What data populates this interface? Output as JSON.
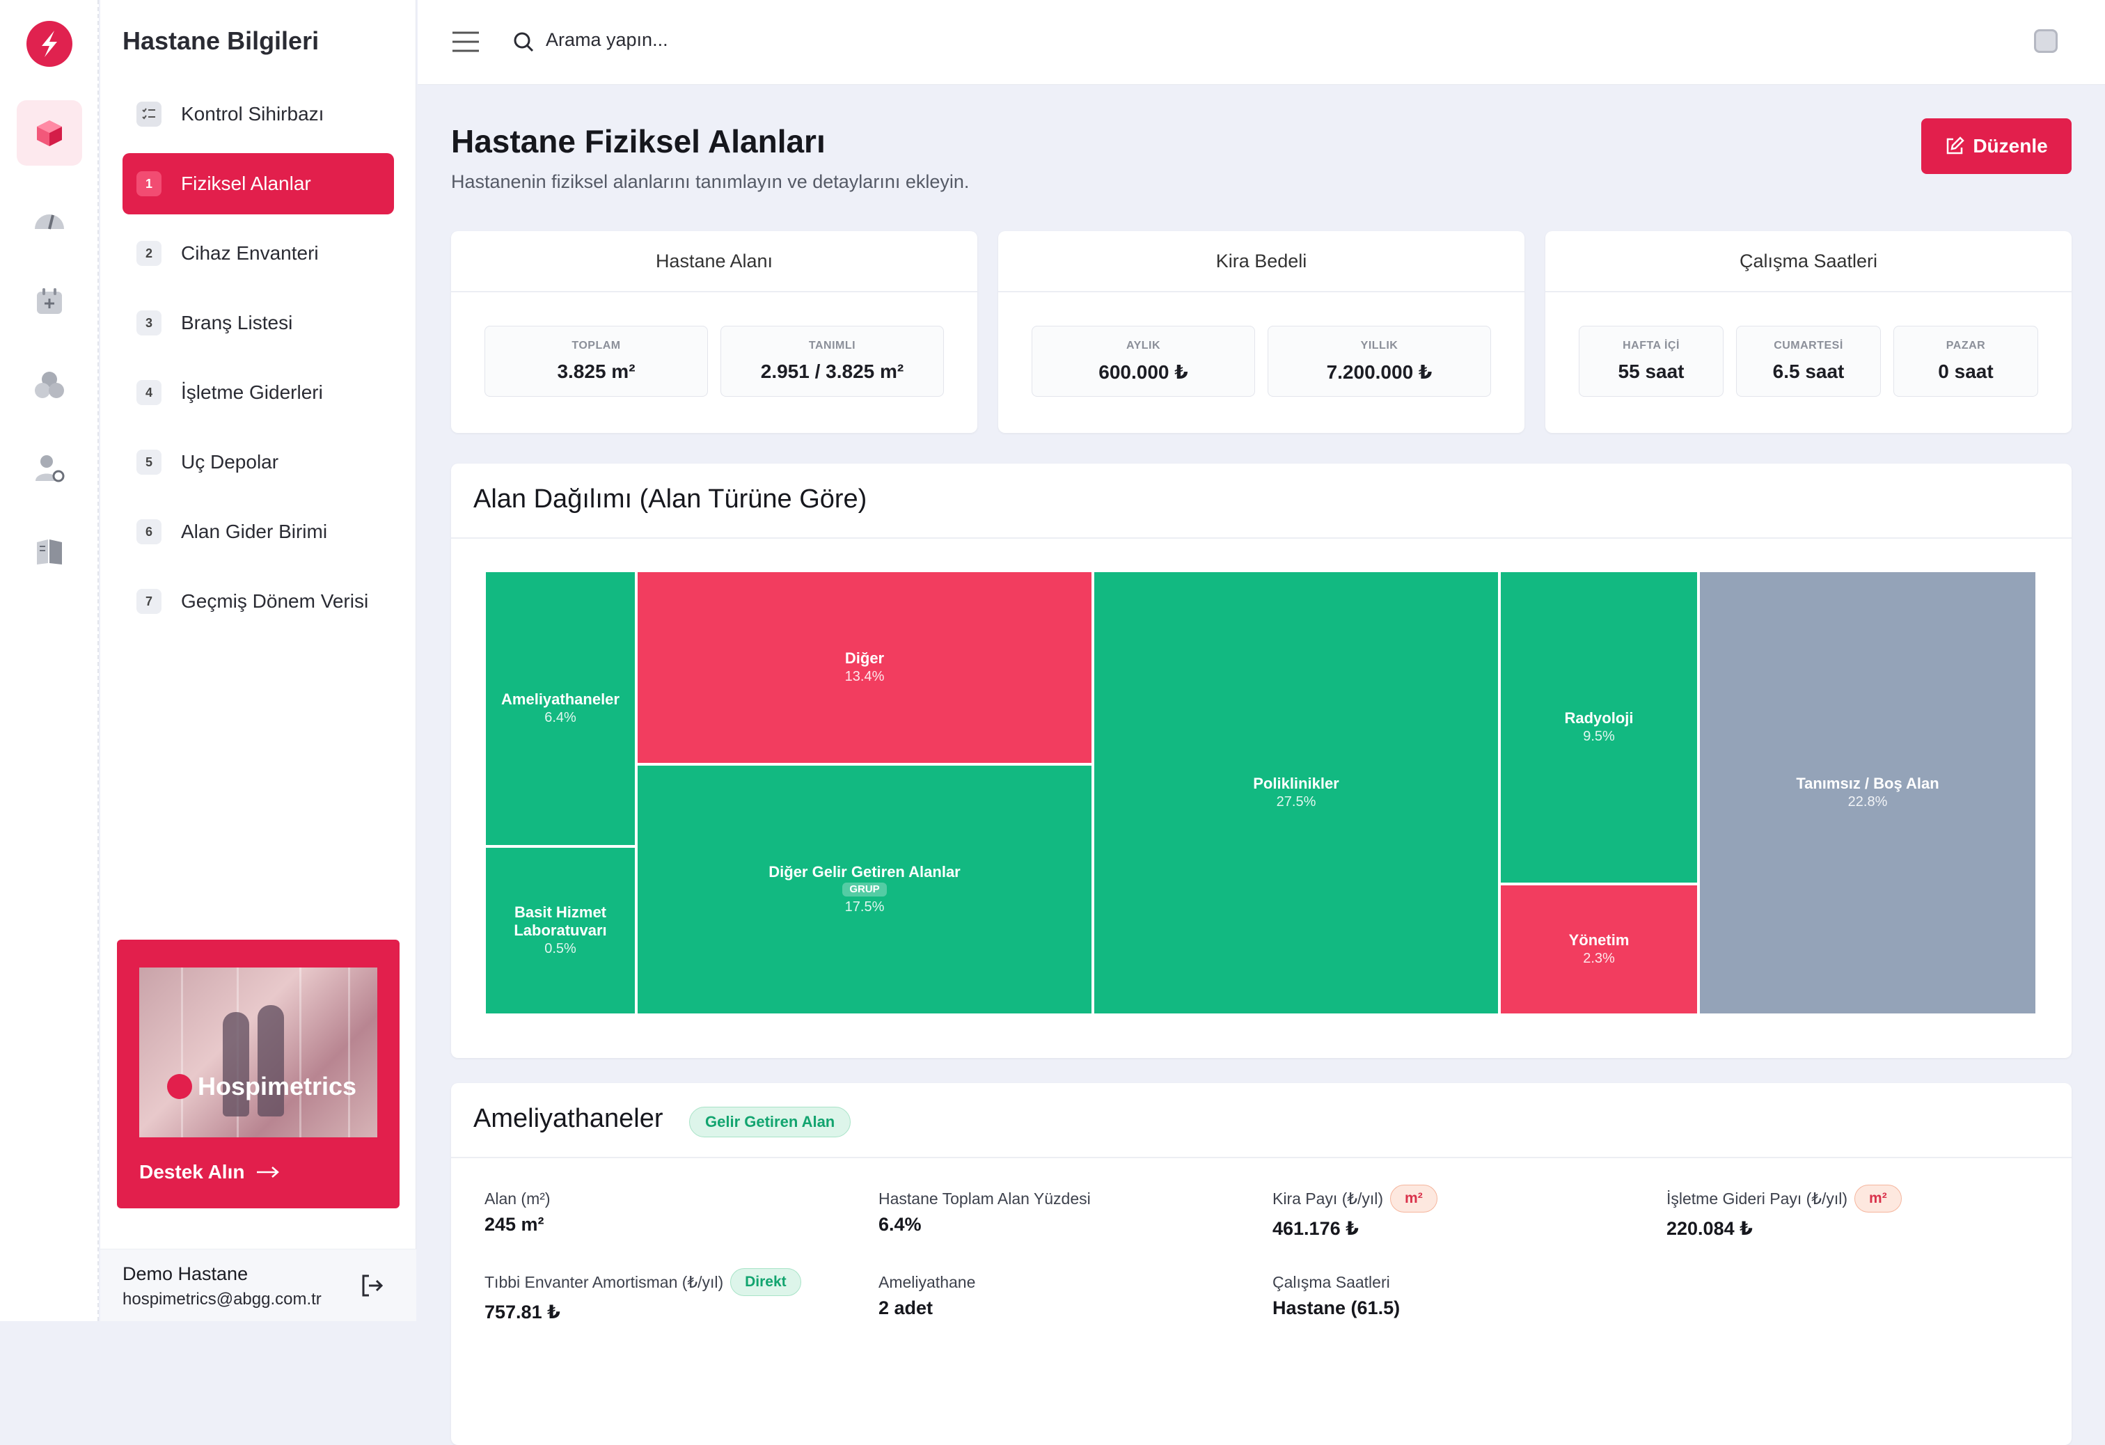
{
  "sidebar": {
    "title": "Hastane Bilgileri",
    "wizard_label": "Kontrol Sihirbazı",
    "items": [
      {
        "num": "1",
        "label": "Fiziksel Alanlar"
      },
      {
        "num": "2",
        "label": "Cihaz Envanteri"
      },
      {
        "num": "3",
        "label": "Branş Listesi"
      },
      {
        "num": "4",
        "label": "İşletme Giderleri"
      },
      {
        "num": "5",
        "label": "Uç Depolar"
      },
      {
        "num": "6",
        "label": "Alan Gider Birimi"
      },
      {
        "num": "7",
        "label": "Geçmiş Dönem Verisi"
      }
    ],
    "promo": {
      "brand": "Hospimetrics",
      "cta": "Destek Alın"
    },
    "user": {
      "name": "Demo Hastane",
      "email": "hospimetrics@abgg.com.tr"
    }
  },
  "topbar": {
    "search_placeholder": "Arama yapın..."
  },
  "page": {
    "title": "Hastane Fiziksel Alanları",
    "subtitle": "Hastanenin fiziksel alanlarını tanımlayın ve detaylarını ekleyin.",
    "edit_label": "Düzenle"
  },
  "summary": [
    {
      "title": "Hastane Alanı",
      "stats": [
        {
          "k": "TOPLAM",
          "v": "3.825 m²"
        },
        {
          "k": "TANIMLI",
          "v": "2.951 / 3.825 m²"
        }
      ]
    },
    {
      "title": "Kira Bedeli",
      "stats": [
        {
          "k": "AYLIK",
          "v": "600.000 ₺"
        },
        {
          "k": "YILLIK",
          "v": "7.200.000 ₺"
        }
      ]
    },
    {
      "title": "Çalışma Saatleri",
      "stats": [
        {
          "k": "HAFTA İÇİ",
          "v": "55 saat"
        },
        {
          "k": "CUMARTESİ",
          "v": "6.5 saat"
        },
        {
          "k": "PAZAR",
          "v": "0 saat"
        }
      ]
    }
  ],
  "treemap": {
    "title": "Alan Dağılımı (Alan Türüne Göre)",
    "tiles": [
      {
        "name": "Ameliyathaneler",
        "pct": "6.4%"
      },
      {
        "name": "Basit Hizmet Laboratuvarı",
        "pct": "0.5%"
      },
      {
        "name": "Diğer",
        "pct": "13.4%"
      },
      {
        "name": "Diğer Gelir Getiren Alanlar",
        "tag": "GRUP",
        "pct": "17.5%"
      },
      {
        "name": "Poliklinikler",
        "pct": "27.5%"
      },
      {
        "name": "Radyoloji",
        "pct": "9.5%"
      },
      {
        "name": "Yönetim",
        "pct": "2.3%"
      },
      {
        "name": "Tanımsız / Boş Alan",
        "pct": "22.8%"
      }
    ],
    "colors": {
      "revenue": "#12b981",
      "other": "#f23d5f",
      "undefined": "#94a3b8"
    }
  },
  "detail": {
    "title": "Ameliyathaneler",
    "badge": "Gelir Getiren Alan",
    "fields": [
      {
        "label": "Alan (m²)",
        "value": "245 m²"
      },
      {
        "label": "Hastane Toplam Alan Yüzdesi",
        "value": "6.4%"
      },
      {
        "label": "Kira Payı (₺/yıl)",
        "pill": "m²",
        "value": "461.176 ₺"
      },
      {
        "label": "İşletme Gideri Payı (₺/yıl)",
        "pill": "m²",
        "value": "220.084 ₺"
      },
      {
        "label": "Tıbbi Envanter Amortisman (₺/yıl)",
        "pill": "Direkt",
        "value": "757.81 ₺"
      },
      {
        "label": "Ameliyathane",
        "value": "2 adet"
      },
      {
        "label": "Çalışma Saatleri",
        "value": "Hastane (61.5)"
      }
    ]
  }
}
